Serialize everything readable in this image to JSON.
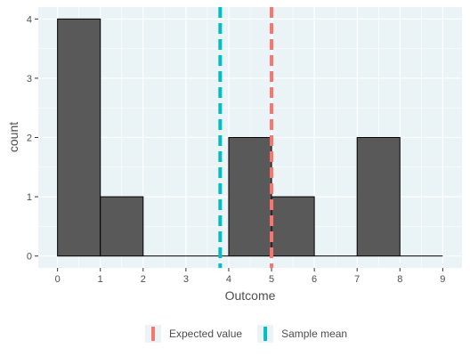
{
  "chart_data": {
    "type": "bar",
    "subtype": "histogram",
    "xlabel": "Outcome",
    "ylabel": "count",
    "xlim": [
      -0.45,
      9.45
    ],
    "ylim": [
      -0.2,
      4.2
    ],
    "x_ticks": [
      "0",
      "1",
      "2",
      "3",
      "4",
      "5",
      "6",
      "7",
      "8",
      "9"
    ],
    "y_ticks": [
      "0",
      "1",
      "2",
      "3",
      "4"
    ],
    "bins": [
      {
        "start": 0,
        "end": 1,
        "count": 4
      },
      {
        "start": 1,
        "end": 2,
        "count": 1
      },
      {
        "start": 2,
        "end": 3,
        "count": 0
      },
      {
        "start": 3,
        "end": 4,
        "count": 0
      },
      {
        "start": 4,
        "end": 5,
        "count": 2
      },
      {
        "start": 5,
        "end": 6,
        "count": 1
      },
      {
        "start": 6,
        "end": 7,
        "count": 0
      },
      {
        "start": 7,
        "end": 8,
        "count": 2
      },
      {
        "start": 8,
        "end": 9,
        "count": 0
      }
    ],
    "vlines": [
      {
        "name": "Expected value",
        "x": 5.0,
        "color": "#F8766D"
      },
      {
        "name": "Sample mean",
        "x": 3.8,
        "color": "#00BFC4"
      }
    ],
    "bar_fill": "#595959",
    "panel_background": "#EAF3F5",
    "grid": true,
    "legend_position": "bottom"
  }
}
